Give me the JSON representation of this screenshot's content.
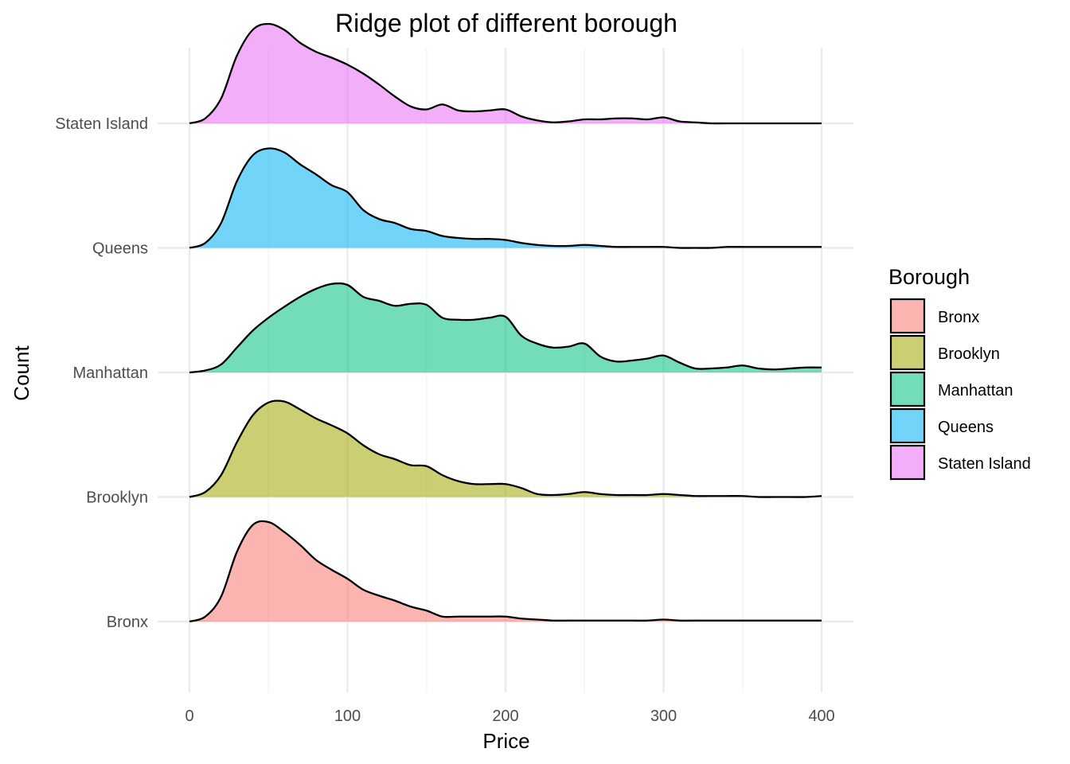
{
  "chart_data": {
    "type": "ridgeline",
    "title": "Ridge plot of different borough",
    "xlabel": "Price",
    "ylabel": "Count",
    "xlim": [
      0,
      400
    ],
    "x_ticks": [
      0,
      100,
      200,
      300,
      400
    ],
    "grid": true,
    "legend": {
      "title": "Borough",
      "position": "right"
    },
    "categories": [
      "Bronx",
      "Brooklyn",
      "Manhattan",
      "Queens",
      "Staten Island"
    ],
    "x": [
      0,
      10,
      20,
      30,
      40,
      50,
      60,
      70,
      80,
      90,
      100,
      110,
      120,
      130,
      140,
      150,
      160,
      170,
      180,
      190,
      200,
      210,
      220,
      230,
      240,
      250,
      260,
      270,
      280,
      290,
      300,
      310,
      320,
      330,
      340,
      350,
      360,
      370,
      380,
      390,
      400
    ],
    "series": [
      {
        "name": "Bronx",
        "color": "#F8766D",
        "density": [
          0.0,
          0.05,
          0.25,
          0.7,
          0.97,
          1.0,
          0.9,
          0.77,
          0.62,
          0.52,
          0.43,
          0.32,
          0.26,
          0.21,
          0.15,
          0.11,
          0.05,
          0.05,
          0.05,
          0.05,
          0.05,
          0.03,
          0.02,
          0.01,
          0.01,
          0.01,
          0.01,
          0.01,
          0.01,
          0.01,
          0.02,
          0.01,
          0.01,
          0.01,
          0.01,
          0.01,
          0.01,
          0.01,
          0.01,
          0.01,
          0.01
        ]
      },
      {
        "name": "Brooklyn",
        "color": "#A3A500",
        "density": [
          0.0,
          0.05,
          0.22,
          0.55,
          0.82,
          0.95,
          0.96,
          0.88,
          0.79,
          0.72,
          0.64,
          0.52,
          0.43,
          0.38,
          0.32,
          0.31,
          0.22,
          0.16,
          0.13,
          0.13,
          0.13,
          0.09,
          0.03,
          0.02,
          0.03,
          0.05,
          0.03,
          0.02,
          0.02,
          0.02,
          0.03,
          0.02,
          0.01,
          0.01,
          0.01,
          0.01,
          0.0,
          0.0,
          0.0,
          0.0,
          0.01
        ]
      },
      {
        "name": "Manhattan",
        "color": "#00BF7D",
        "density": [
          0.0,
          0.02,
          0.08,
          0.25,
          0.42,
          0.55,
          0.66,
          0.76,
          0.84,
          0.89,
          0.88,
          0.76,
          0.72,
          0.67,
          0.69,
          0.68,
          0.55,
          0.53,
          0.53,
          0.55,
          0.56,
          0.37,
          0.29,
          0.25,
          0.26,
          0.29,
          0.16,
          0.11,
          0.12,
          0.14,
          0.17,
          0.1,
          0.04,
          0.04,
          0.05,
          0.07,
          0.04,
          0.03,
          0.04,
          0.05,
          0.05
        ]
      },
      {
        "name": "Queens",
        "color": "#00B0F6",
        "density": [
          0.0,
          0.05,
          0.25,
          0.67,
          0.93,
          1.0,
          0.96,
          0.84,
          0.74,
          0.63,
          0.56,
          0.38,
          0.29,
          0.25,
          0.19,
          0.17,
          0.12,
          0.1,
          0.09,
          0.09,
          0.08,
          0.05,
          0.03,
          0.02,
          0.02,
          0.03,
          0.02,
          0.01,
          0.01,
          0.01,
          0.01,
          0.0,
          0.0,
          0.0,
          0.01,
          0.01,
          0.01,
          0.01,
          0.01,
          0.01,
          0.01
        ]
      },
      {
        "name": "Staten Island",
        "color": "#E76BF3",
        "density": [
          0.0,
          0.05,
          0.25,
          0.68,
          0.94,
          1.0,
          0.94,
          0.81,
          0.72,
          0.66,
          0.59,
          0.5,
          0.39,
          0.27,
          0.17,
          0.14,
          0.19,
          0.13,
          0.12,
          0.13,
          0.14,
          0.07,
          0.03,
          0.01,
          0.02,
          0.04,
          0.04,
          0.05,
          0.05,
          0.04,
          0.06,
          0.02,
          0.01,
          0.0,
          0.0,
          0.0,
          0.0,
          0.0,
          0.0,
          0.0,
          0.0
        ]
      }
    ]
  }
}
